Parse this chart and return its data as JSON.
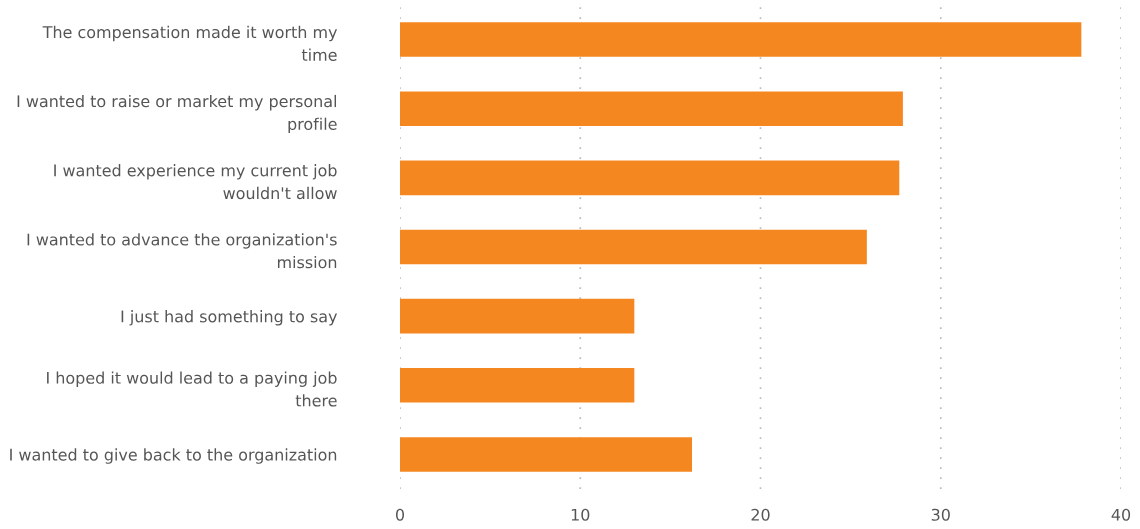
{
  "chart_data": {
    "type": "bar",
    "orientation": "horizontal",
    "categories": [
      "The compensation made it worth my\ntime",
      "I wanted to raise or market my personal\nprofile",
      "I wanted experience my current job\nwouldn't allow",
      "I wanted to advance the organization's\nmission",
      "I just had something to say",
      "I hoped it would lead to a paying job\nthere",
      "I wanted to give back to the organization"
    ],
    "values": [
      37.8,
      27.9,
      27.7,
      25.9,
      13,
      13,
      16.2
    ],
    "color": "#f58720",
    "xlim": [
      0,
      40
    ],
    "xticks": [
      0,
      10,
      20,
      30,
      40
    ],
    "grid": "x",
    "legend": false
  }
}
